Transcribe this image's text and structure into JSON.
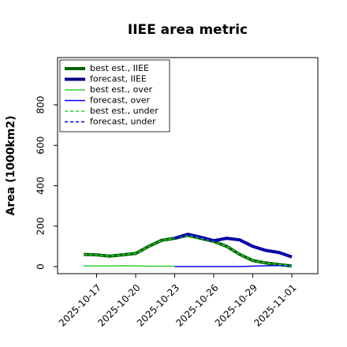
{
  "chart_data": {
    "type": "line",
    "title": "IIEE area metric",
    "y_label": "Area (1000km2)",
    "x": [
      "2025-10-16",
      "2025-10-17",
      "2025-10-18",
      "2025-10-19",
      "2025-10-20",
      "2025-10-21",
      "2025-10-22",
      "2025-10-23",
      "2025-10-24",
      "2025-10-25",
      "2025-10-26",
      "2025-10-27",
      "2025-10-28",
      "2025-10-29",
      "2025-10-30",
      "2025-10-31",
      "2025-11-01"
    ],
    "series": [
      {
        "name": "best est., IIEE",
        "color": "#006400",
        "width": 4,
        "dashed": false,
        "values": [
          60,
          58,
          52,
          58,
          65,
          100,
          130,
          140,
          155,
          140,
          125,
          100,
          60,
          30,
          18,
          10,
          3
        ]
      },
      {
        "name": "forecast, IIEE",
        "color": "#00008b",
        "width": 4,
        "dashed": false,
        "values": [
          null,
          null,
          null,
          null,
          null,
          null,
          null,
          140,
          160,
          145,
          128,
          140,
          132,
          100,
          80,
          70,
          48
        ]
      },
      {
        "name": "best est., over",
        "color": "#32cd32",
        "width": 1.5,
        "dashed": false,
        "values": [
          3,
          3,
          3,
          4,
          3,
          2,
          2,
          2,
          null,
          null,
          null,
          null,
          null,
          null,
          null,
          null,
          null
        ]
      },
      {
        "name": "forecast, over",
        "color": "#0000ff",
        "width": 1.5,
        "dashed": false,
        "values": [
          null,
          null,
          null,
          null,
          null,
          null,
          null,
          0,
          0,
          0,
          0,
          0,
          0,
          2,
          4,
          5,
          5
        ]
      },
      {
        "name": "best est., under",
        "color": "#32cd32",
        "width": 1.5,
        "dashed": true,
        "values": [
          60,
          58,
          52,
          58,
          65,
          100,
          130,
          140,
          155,
          140,
          125,
          100,
          60,
          30,
          18,
          10,
          3
        ]
      },
      {
        "name": "forecast, under",
        "color": "#0000ff",
        "width": 1.5,
        "dashed": true,
        "values": [
          null,
          null,
          null,
          null,
          null,
          null,
          null,
          140,
          160,
          145,
          128,
          140,
          132,
          100,
          80,
          70,
          48
        ]
      }
    ],
    "xlim": [
      "2025-10-14",
      "2025-11-03"
    ],
    "xticks": [
      "2025-10-17",
      "2025-10-20",
      "2025-10-23",
      "2025-10-26",
      "2025-10-29",
      "2025-11-01"
    ],
    "highlight_tick": "2025-10-23",
    "highlight_color": "#228b22",
    "ylim": [
      -35,
      1034
    ],
    "yticks": [
      0,
      200,
      400,
      600,
      800
    ],
    "grid": false,
    "legend": "upper left"
  }
}
